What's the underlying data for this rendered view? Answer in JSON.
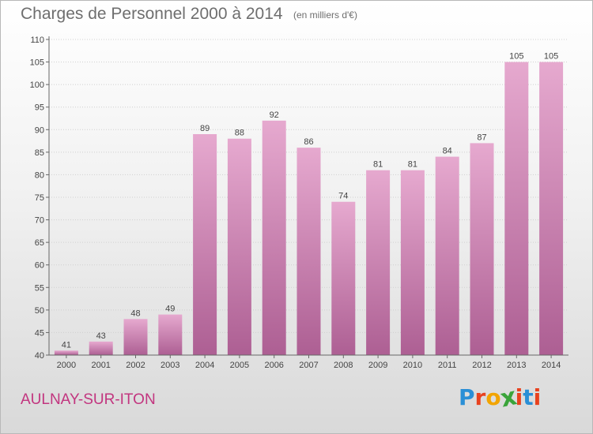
{
  "header": {
    "title": "Charges de Personnel 2000 à 2014",
    "subtitle": "(en milliers d'€)"
  },
  "footer": {
    "city": "AULNAY-SUR-ITON",
    "logo_letters": [
      "P",
      "r",
      "o",
      "x",
      "i",
      "t",
      "i"
    ],
    "logo_colors": [
      "#2a8fd6",
      "#e8421f",
      "#f2a400",
      "#3aa43a",
      "#e8421f",
      "#2a8fd6",
      "#e8421f"
    ]
  },
  "colors": {
    "bar_top": "#e6a9cf",
    "bar_bottom": "#ad5f93",
    "axis": "#666666",
    "grid": "#cfcfcf",
    "text": "#444444"
  },
  "chart_data": {
    "type": "bar",
    "title": "Charges de Personnel 2000 à 2014",
    "subtitle": "(en milliers d'€)",
    "xlabel": "",
    "ylabel": "",
    "categories": [
      "2000",
      "2001",
      "2002",
      "2003",
      "2004",
      "2005",
      "2006",
      "2007",
      "2008",
      "2009",
      "2010",
      "2011",
      "2012",
      "2013",
      "2014"
    ],
    "values": [
      41,
      43,
      48,
      49,
      89,
      88,
      92,
      86,
      74,
      81,
      81,
      84,
      87,
      105,
      105
    ],
    "ylim": [
      40,
      110
    ],
    "yticks": [
      40,
      45,
      50,
      55,
      60,
      65,
      70,
      75,
      80,
      85,
      90,
      95,
      100,
      105,
      110
    ],
    "grid": true,
    "data_labels": true
  }
}
